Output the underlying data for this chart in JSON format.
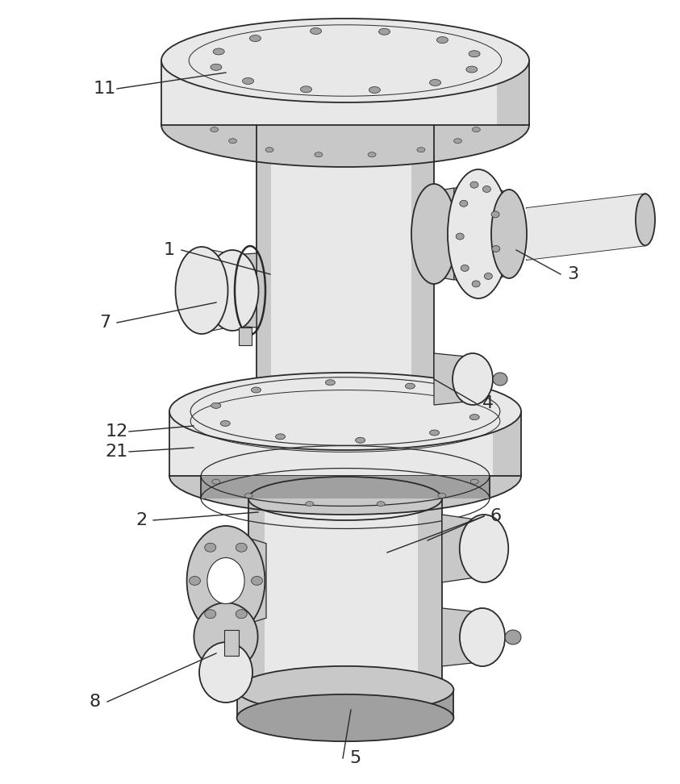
{
  "bg_color": "#ffffff",
  "lc": "#2a2a2a",
  "lg": "#e8e8e8",
  "mg": "#c8c8c8",
  "dg": "#a0a0a0",
  "vdg": "#808080",
  "figsize": [
    8.43,
    9.72
  ],
  "dpi": 100
}
